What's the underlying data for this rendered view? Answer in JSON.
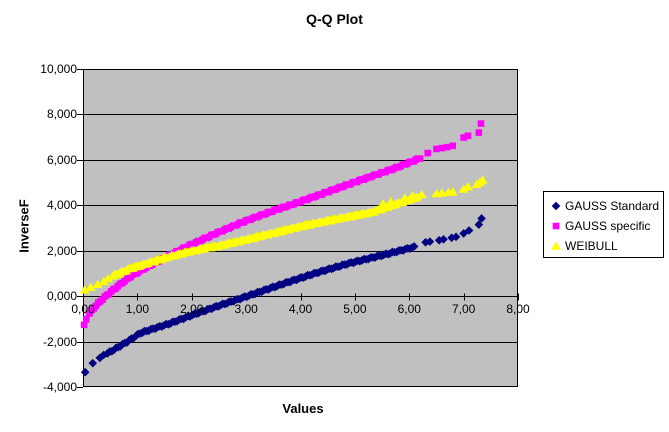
{
  "chart_data": {
    "type": "scatter",
    "title": "Q-Q Plot",
    "xlabel": "Values",
    "ylabel": "InverseF",
    "xlim": [
      0,
      8
    ],
    "ylim": [
      -4000,
      10000
    ],
    "grid": "horizontal",
    "plot_bg": "#c0c0c0",
    "grid_color": "#000000",
    "legend_position": "right",
    "x_ticks": [
      {
        "label": "0,00",
        "v": 0
      },
      {
        "label": "1,00",
        "v": 1
      },
      {
        "label": "2,00",
        "v": 2
      },
      {
        "label": "3,00",
        "v": 3
      },
      {
        "label": "4,00",
        "v": 4
      },
      {
        "label": "5,00",
        "v": 5
      },
      {
        "label": "6,00",
        "v": 6
      },
      {
        "label": "7,00",
        "v": 7
      },
      {
        "label": "8,00",
        "v": 8
      }
    ],
    "y_ticks": [
      {
        "label": "10,000",
        "v": 10000
      },
      {
        "label": "8,000",
        "v": 8000
      },
      {
        "label": "6,000",
        "v": 6000
      },
      {
        "label": "4,000",
        "v": 4000
      },
      {
        "label": "2,000",
        "v": 2000
      },
      {
        "label": "0,000",
        "v": 0
      },
      {
        "label": "-2,000",
        "v": -2000
      },
      {
        "label": "-4,000",
        "v": -4000
      }
    ],
    "series": [
      {
        "name": "GAUSS Standard",
        "marker": "diamond",
        "color": "#000080",
        "curve": [
          [
            0.04,
            -3350
          ],
          [
            0.18,
            -2950
          ],
          [
            0.33,
            -2700
          ],
          [
            0.5,
            -2450
          ],
          [
            0.68,
            -2200
          ],
          [
            0.85,
            -1950
          ],
          [
            1.05,
            -1630
          ],
          [
            1.3,
            -1430
          ],
          [
            1.6,
            -1200
          ],
          [
            2.0,
            -840
          ],
          [
            2.5,
            -420
          ],
          [
            2.9,
            -100
          ],
          [
            3.3,
            230
          ],
          [
            3.8,
            640
          ],
          [
            4.3,
            1030
          ],
          [
            4.9,
            1450
          ],
          [
            5.5,
            1800
          ],
          [
            6.12,
            2180
          ]
        ],
        "band": {
          "from": 0.45,
          "to": 6.12,
          "step": 0.04
        },
        "points": [
          [
            0.04,
            -3350
          ],
          [
            0.18,
            -2950
          ],
          [
            0.31,
            -2720
          ],
          [
            0.38,
            -2590
          ],
          [
            6.3,
            2370
          ],
          [
            6.38,
            2400
          ],
          [
            6.55,
            2460
          ],
          [
            6.63,
            2500
          ],
          [
            6.78,
            2570
          ],
          [
            6.86,
            2610
          ],
          [
            7.0,
            2760
          ],
          [
            7.1,
            2890
          ],
          [
            7.28,
            3150
          ],
          [
            7.33,
            3420
          ]
        ]
      },
      {
        "name": "GAUSS specific",
        "marker": "square",
        "color": "#ff00ff",
        "curve": [
          [
            0.02,
            -1260
          ],
          [
            0.12,
            -760
          ],
          [
            0.22,
            -460
          ],
          [
            0.32,
            -220
          ],
          [
            0.42,
            0
          ],
          [
            0.55,
            260
          ],
          [
            0.7,
            550
          ],
          [
            0.86,
            840
          ],
          [
            1.1,
            1180
          ],
          [
            1.42,
            1590
          ],
          [
            1.97,
            2250
          ],
          [
            2.5,
            2820
          ],
          [
            3.0,
            3320
          ],
          [
            3.5,
            3760
          ],
          [
            3.8,
            4000
          ],
          [
            4.3,
            4420
          ],
          [
            4.8,
            4850
          ],
          [
            5.3,
            5270
          ],
          [
            5.7,
            5600
          ],
          [
            6.0,
            5880
          ],
          [
            6.22,
            6100
          ]
        ],
        "band": {
          "from": 0.12,
          "to": 6.22,
          "step": 0.04
        },
        "points": [
          [
            0.02,
            -1260
          ],
          [
            0.06,
            -1020
          ],
          [
            6.34,
            6300
          ],
          [
            6.5,
            6480
          ],
          [
            6.6,
            6520
          ],
          [
            6.7,
            6560
          ],
          [
            6.8,
            6620
          ],
          [
            7.0,
            6980
          ],
          [
            7.08,
            7060
          ],
          [
            7.28,
            7200
          ],
          [
            7.32,
            7600
          ]
        ]
      },
      {
        "name": "WEIBULL",
        "marker": "triangle",
        "color": "#ffff00",
        "curve": [
          [
            0.02,
            280
          ],
          [
            0.3,
            560
          ],
          [
            0.55,
            900
          ],
          [
            0.86,
            1220
          ],
          [
            1.2,
            1470
          ],
          [
            1.6,
            1760
          ],
          [
            2.0,
            2000
          ],
          [
            2.5,
            2230
          ],
          [
            3.0,
            2500
          ],
          [
            3.5,
            2790
          ],
          [
            4.0,
            3080
          ],
          [
            4.5,
            3330
          ],
          [
            5.0,
            3560
          ],
          [
            5.3,
            3700
          ],
          [
            5.6,
            3950
          ],
          [
            5.9,
            4180
          ],
          [
            6.18,
            4400
          ]
        ],
        "band": {
          "from": 0.55,
          "to": 6.18,
          "step": 0.04
        },
        "points": [
          [
            0.03,
            280
          ],
          [
            0.14,
            400
          ],
          [
            0.27,
            530
          ],
          [
            0.38,
            650
          ],
          [
            0.46,
            780
          ],
          [
            5.52,
            4080
          ],
          [
            5.66,
            4170
          ],
          [
            5.92,
            4330
          ],
          [
            6.06,
            4430
          ],
          [
            6.23,
            4480
          ],
          [
            6.5,
            4520
          ],
          [
            6.6,
            4550
          ],
          [
            6.72,
            4580
          ],
          [
            6.8,
            4600
          ],
          [
            7.0,
            4720
          ],
          [
            7.08,
            4820
          ],
          [
            7.24,
            4930
          ],
          [
            7.3,
            5020
          ],
          [
            7.35,
            5120
          ]
        ]
      }
    ]
  }
}
